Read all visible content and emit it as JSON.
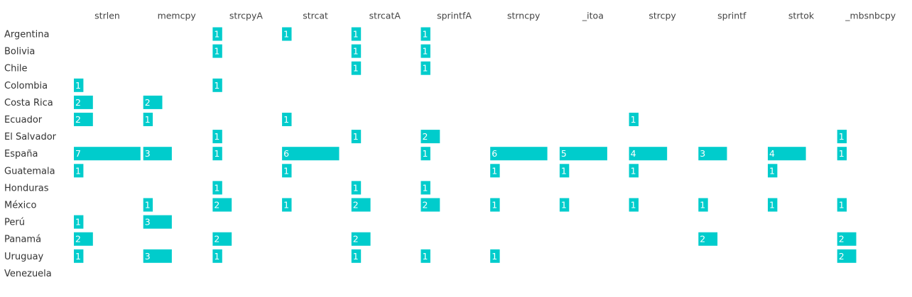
{
  "chart_data": {
    "type": "bar-grid",
    "color": "#00cccc",
    "categories": [
      "Argentina",
      "Bolivia",
      "Chile",
      "Colombia",
      "Costa Rica",
      "Ecuador",
      "El Salvador",
      "España",
      "Guatemala",
      "Honduras",
      "México",
      "Perú",
      "Panamá",
      "Uruguay",
      "Venezuela"
    ],
    "series": [
      {
        "name": "strlen",
        "values": [
          null,
          null,
          null,
          1,
          2,
          2,
          null,
          7,
          1,
          null,
          null,
          1,
          2,
          1,
          null
        ]
      },
      {
        "name": "memcpy",
        "values": [
          null,
          null,
          null,
          null,
          2,
          1,
          null,
          3,
          null,
          null,
          1,
          3,
          null,
          3,
          null
        ]
      },
      {
        "name": "strcpyA",
        "values": [
          1,
          1,
          null,
          1,
          null,
          null,
          1,
          1,
          null,
          1,
          2,
          null,
          2,
          1,
          null
        ]
      },
      {
        "name": "strcat",
        "values": [
          1,
          null,
          null,
          null,
          null,
          1,
          null,
          6,
          1,
          null,
          1,
          null,
          null,
          null,
          null
        ]
      },
      {
        "name": "strcatA",
        "values": [
          1,
          1,
          1,
          null,
          null,
          null,
          1,
          null,
          null,
          1,
          2,
          null,
          2,
          1,
          null
        ]
      },
      {
        "name": "sprintfA",
        "values": [
          1,
          1,
          1,
          null,
          null,
          null,
          2,
          1,
          null,
          1,
          2,
          null,
          null,
          1,
          null
        ]
      },
      {
        "name": "strncpy",
        "values": [
          null,
          null,
          null,
          null,
          null,
          null,
          null,
          6,
          1,
          null,
          1,
          null,
          null,
          1,
          null
        ]
      },
      {
        "name": "_itoa",
        "values": [
          null,
          null,
          null,
          null,
          null,
          null,
          null,
          5,
          1,
          null,
          1,
          null,
          null,
          null,
          null
        ]
      },
      {
        "name": "strcpy",
        "values": [
          null,
          null,
          null,
          null,
          null,
          1,
          null,
          4,
          1,
          null,
          1,
          null,
          null,
          null,
          null
        ]
      },
      {
        "name": "sprintf",
        "values": [
          null,
          null,
          null,
          null,
          null,
          null,
          null,
          3,
          null,
          null,
          1,
          null,
          2,
          null,
          null
        ]
      },
      {
        "name": "strtok",
        "values": [
          null,
          null,
          null,
          null,
          null,
          null,
          null,
          4,
          1,
          null,
          1,
          null,
          null,
          null,
          null
        ]
      },
      {
        "name": "_mbsnbcpy",
        "values": [
          null,
          null,
          null,
          null,
          null,
          null,
          1,
          1,
          null,
          null,
          1,
          null,
          2,
          2,
          null
        ]
      }
    ]
  }
}
